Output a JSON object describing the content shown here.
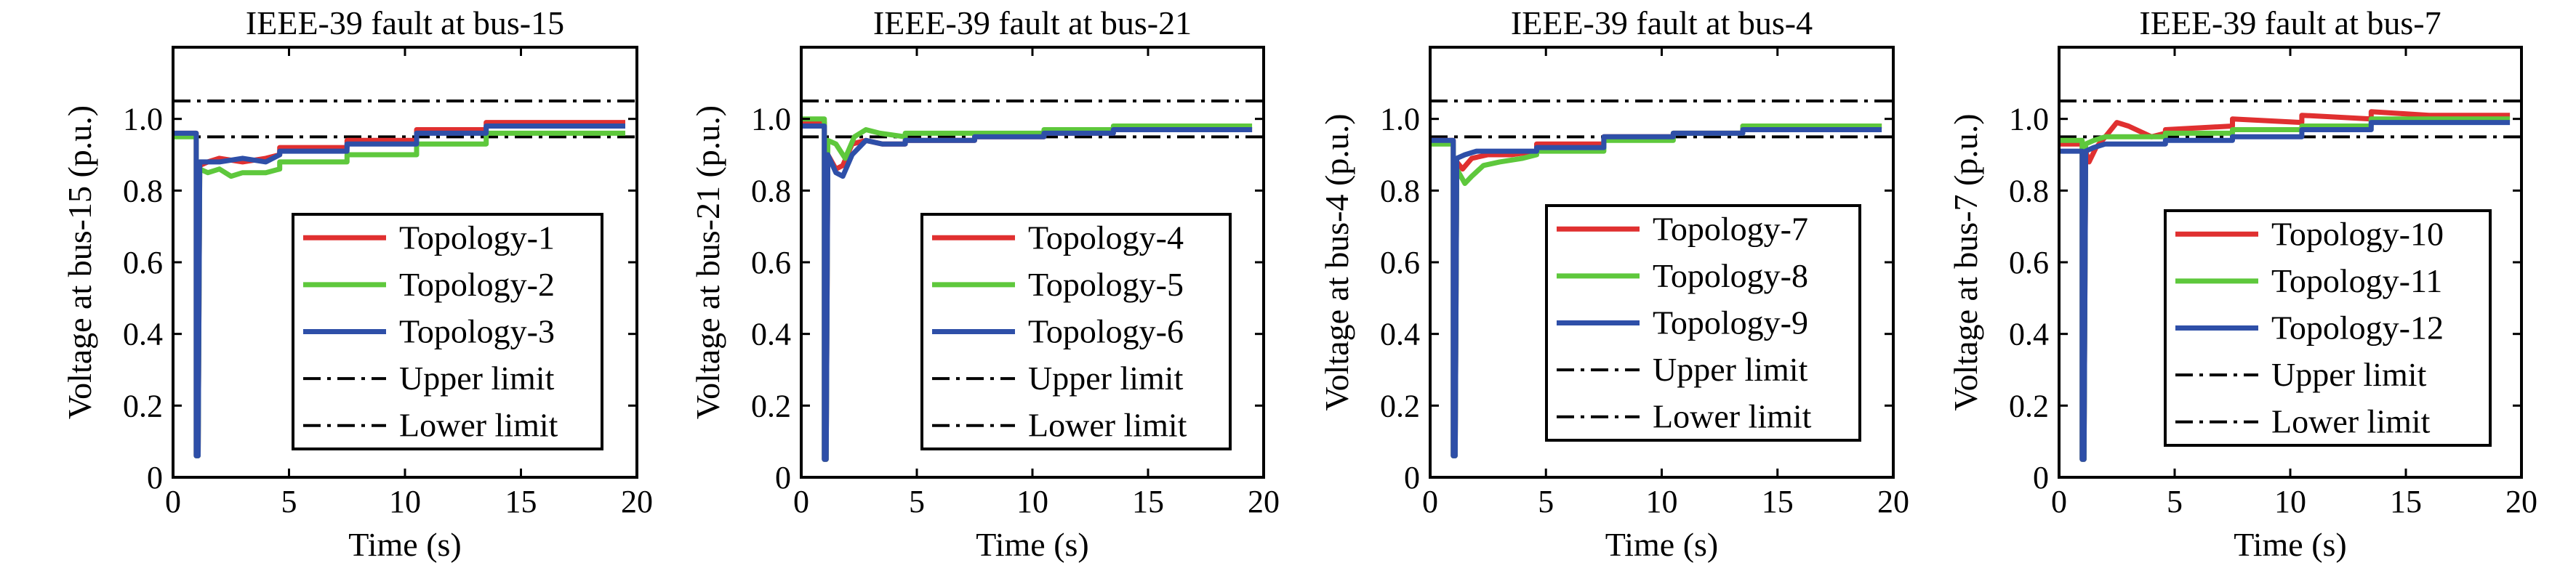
{
  "chart_data": [
    {
      "type": "line",
      "title": "IEEE-39 fault at bus-15",
      "xlabel": "Time (s)",
      "ylabel": "Voltage at bus-15 (p.u.)",
      "xlim": [
        0,
        20
      ],
      "ylim": [
        0,
        1.2
      ],
      "xticks": [
        "0",
        "5",
        "10",
        "15",
        "20"
      ],
      "yticks": [
        "0",
        "0.2",
        "0.4",
        "0.6",
        "0.8",
        "1.0"
      ],
      "grid": false,
      "legend_position": "bottom-right",
      "limits": {
        "upper": 1.05,
        "lower": 0.95
      },
      "legend": [
        "Topology-1",
        "Topology-2",
        "Topology-3",
        "Upper limit",
        "Lower limit"
      ],
      "series": [
        {
          "name": "Topology-1",
          "color": "#e03030",
          "x": [
            0,
            1.0,
            1.0,
            1.08,
            1.15,
            1.5,
            2,
            3,
            4,
            4.6,
            4.6,
            7.5,
            7.5,
            10.5,
            10.5,
            13.5,
            13.5,
            16.5,
            16.5,
            19.5
          ],
          "y": [
            0.96,
            0.96,
            0.06,
            0.06,
            0.87,
            0.88,
            0.89,
            0.88,
            0.89,
            0.9,
            0.92,
            0.92,
            0.94,
            0.94,
            0.97,
            0.97,
            0.99,
            0.99,
            0.99,
            0.99
          ]
        },
        {
          "name": "Topology-2",
          "color": "#5ec83c",
          "x": [
            0,
            1.0,
            1.0,
            1.08,
            1.15,
            1.5,
            2,
            2.5,
            3,
            4,
            4.6,
            4.6,
            7.5,
            7.5,
            10.5,
            10.5,
            13.5,
            13.5,
            19.5
          ],
          "y": [
            0.95,
            0.95,
            0.06,
            0.06,
            0.86,
            0.85,
            0.86,
            0.84,
            0.85,
            0.85,
            0.86,
            0.88,
            0.88,
            0.9,
            0.9,
            0.93,
            0.93,
            0.96,
            0.96
          ]
        },
        {
          "name": "Topology-3",
          "color": "#2e4fa8",
          "x": [
            0,
            1.0,
            1.0,
            1.08,
            1.15,
            1.5,
            2,
            3,
            4,
            4.6,
            4.6,
            7.5,
            7.5,
            10.5,
            10.5,
            13.5,
            13.5,
            19.5
          ],
          "y": [
            0.96,
            0.96,
            0.06,
            0.06,
            0.88,
            0.88,
            0.88,
            0.89,
            0.88,
            0.9,
            0.91,
            0.91,
            0.93,
            0.93,
            0.96,
            0.96,
            0.98,
            0.98
          ]
        }
      ]
    },
    {
      "type": "line",
      "title": "IEEE-39 fault at bus-21",
      "xlabel": "Time (s)",
      "ylabel": "Voltage at bus-21 (p.u.)",
      "xlim": [
        0,
        20
      ],
      "ylim": [
        0,
        1.2
      ],
      "xticks": [
        "0",
        "5",
        "10",
        "15",
        "20"
      ],
      "yticks": [
        "0",
        "0.2",
        "0.4",
        "0.6",
        "0.8",
        "1.0"
      ],
      "grid": false,
      "legend_position": "bottom-right",
      "limits": {
        "upper": 1.05,
        "lower": 0.95
      },
      "legend": [
        "Topology-4",
        "Topology-5",
        "Topology-6",
        "Upper limit",
        "Lower limit"
      ],
      "series": [
        {
          "name": "Topology-4",
          "color": "#e03030",
          "x": [
            0,
            1.0,
            1.0,
            1.08,
            1.15,
            1.5,
            1.8,
            2.2,
            2.8,
            3.5,
            4.5,
            4.5,
            7.5,
            7.5,
            10.5,
            10.5,
            13.5,
            13.5,
            16.5,
            16.5,
            19.5
          ],
          "y": [
            0.99,
            0.99,
            0.05,
            0.05,
            0.9,
            0.86,
            0.87,
            0.93,
            0.94,
            0.93,
            0.93,
            0.94,
            0.94,
            0.95,
            0.95,
            0.96,
            0.96,
            0.97,
            0.97,
            0.97,
            0.97
          ]
        },
        {
          "name": "Topology-5",
          "color": "#5ec83c",
          "x": [
            0,
            1.0,
            1.0,
            1.08,
            1.15,
            1.5,
            1.9,
            2.3,
            2.8,
            3.4,
            4.5,
            4.5,
            7.5,
            7.5,
            10.5,
            10.5,
            13.5,
            13.5,
            19.5
          ],
          "y": [
            1.0,
            1.0,
            0.05,
            0.05,
            0.94,
            0.93,
            0.89,
            0.95,
            0.97,
            0.96,
            0.95,
            0.96,
            0.96,
            0.96,
            0.96,
            0.97,
            0.97,
            0.98,
            0.98
          ]
        },
        {
          "name": "Topology-6",
          "color": "#2e4fa8",
          "x": [
            0,
            1.0,
            1.0,
            1.08,
            1.15,
            1.5,
            1.8,
            2.2,
            2.8,
            3.5,
            4.5,
            4.5,
            7.5,
            7.5,
            10.5,
            10.5,
            13.5,
            13.5,
            19.5
          ],
          "y": [
            0.98,
            0.98,
            0.05,
            0.05,
            0.9,
            0.85,
            0.84,
            0.9,
            0.94,
            0.93,
            0.93,
            0.94,
            0.94,
            0.95,
            0.95,
            0.96,
            0.96,
            0.97,
            0.97
          ]
        }
      ]
    },
    {
      "type": "line",
      "title": "IEEE-39 fault at bus-4",
      "xlabel": "Time (s)",
      "ylabel": "Voltage at bus-4 (p.u.)",
      "xlim": [
        0,
        20
      ],
      "ylim": [
        0,
        1.2
      ],
      "xticks": [
        "0",
        "5",
        "10",
        "15",
        "20"
      ],
      "yticks": [
        "0",
        "0.2",
        "0.4",
        "0.6",
        "0.8",
        "1.0"
      ],
      "grid": false,
      "legend_position": "bottom-right",
      "limits": {
        "upper": 1.05,
        "lower": 0.95
      },
      "legend": [
        "Topology-7",
        "Topology-8",
        "Topology-9",
        "Upper limit",
        "Lower limit"
      ],
      "series": [
        {
          "name": "Topology-7",
          "color": "#e03030",
          "x": [
            0,
            1.0,
            1.0,
            1.08,
            1.15,
            1.4,
            1.8,
            2.5,
            3.5,
            4.6,
            4.6,
            7.5,
            7.5,
            10.5,
            10.5,
            13.5,
            13.5,
            19.5
          ],
          "y": [
            0.94,
            0.94,
            0.06,
            0.06,
            0.88,
            0.86,
            0.89,
            0.9,
            0.9,
            0.91,
            0.93,
            0.93,
            0.95,
            0.95,
            0.96,
            0.96,
            0.98,
            0.98
          ]
        },
        {
          "name": "Topology-8",
          "color": "#5ec83c",
          "x": [
            0,
            1.0,
            1.0,
            1.08,
            1.15,
            1.5,
            1.8,
            2.3,
            3.0,
            4.0,
            4.6,
            4.6,
            7.5,
            7.5,
            10.5,
            10.5,
            13.5,
            13.5,
            19.5
          ],
          "y": [
            0.93,
            0.93,
            0.06,
            0.06,
            0.86,
            0.82,
            0.84,
            0.87,
            0.88,
            0.89,
            0.9,
            0.91,
            0.91,
            0.94,
            0.94,
            0.96,
            0.96,
            0.98,
            0.98
          ]
        },
        {
          "name": "Topology-9",
          "color": "#2e4fa8",
          "x": [
            0,
            1.0,
            1.0,
            1.08,
            1.15,
            1.5,
            2.0,
            3.0,
            4.6,
            4.6,
            7.5,
            7.5,
            10.5,
            10.5,
            13.5,
            13.5,
            19.5
          ],
          "y": [
            0.94,
            0.94,
            0.06,
            0.06,
            0.89,
            0.9,
            0.91,
            0.91,
            0.91,
            0.92,
            0.92,
            0.95,
            0.95,
            0.96,
            0.96,
            0.97,
            0.97
          ]
        }
      ]
    },
    {
      "type": "line",
      "title": "IEEE-39 fault at bus-7",
      "xlabel": "Time (s)",
      "ylabel": "Voltage at bus-7 (p.u.)",
      "xlim": [
        0,
        20
      ],
      "ylim": [
        0,
        1.2
      ],
      "xticks": [
        "0",
        "5",
        "10",
        "15",
        "20"
      ],
      "yticks": [
        "0",
        "0.2",
        "0.4",
        "0.6",
        "0.8",
        "1.0"
      ],
      "grid": false,
      "legend_position": "bottom-right",
      "limits": {
        "upper": 1.05,
        "lower": 0.95
      },
      "legend": [
        "Topology-10",
        "Topology-11",
        "Topology-12",
        "Upper limit",
        "Lower limit"
      ],
      "series": [
        {
          "name": "Topology-10",
          "color": "#e03030",
          "x": [
            0,
            1.0,
            1.0,
            1.08,
            1.15,
            1.3,
            1.6,
            2.0,
            2.5,
            3.0,
            4.0,
            4.6,
            4.6,
            7.5,
            7.5,
            10.5,
            10.5,
            13.5,
            13.5,
            16.0,
            19.5
          ],
          "y": [
            0.93,
            0.93,
            0.05,
            0.05,
            0.91,
            0.88,
            0.92,
            0.95,
            0.99,
            0.98,
            0.95,
            0.96,
            0.97,
            0.98,
            1.0,
            0.99,
            1.01,
            1.0,
            1.02,
            1.01,
            1.01
          ]
        },
        {
          "name": "Topology-11",
          "color": "#5ec83c",
          "x": [
            0,
            1.0,
            1.0,
            1.08,
            1.15,
            1.5,
            2.0,
            3.0,
            4.6,
            4.6,
            7.5,
            7.5,
            10.5,
            10.5,
            13.5,
            13.5,
            19.5
          ],
          "y": [
            0.94,
            0.94,
            0.05,
            0.05,
            0.93,
            0.94,
            0.95,
            0.95,
            0.95,
            0.96,
            0.96,
            0.97,
            0.97,
            0.98,
            0.98,
            1.0,
            1.0
          ]
        },
        {
          "name": "Topology-12",
          "color": "#2e4fa8",
          "x": [
            0,
            1.0,
            1.0,
            1.08,
            1.15,
            1.5,
            2.0,
            3.0,
            4.6,
            4.6,
            7.5,
            7.5,
            10.5,
            10.5,
            13.5,
            13.5,
            19.5
          ],
          "y": [
            0.91,
            0.91,
            0.05,
            0.05,
            0.91,
            0.92,
            0.93,
            0.93,
            0.93,
            0.94,
            0.94,
            0.95,
            0.95,
            0.97,
            0.97,
            0.99,
            0.99
          ]
        }
      ]
    }
  ]
}
